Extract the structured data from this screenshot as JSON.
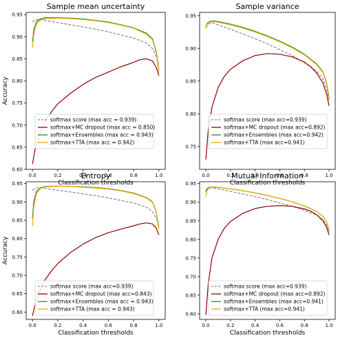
{
  "chart_data": [
    {
      "type": "line",
      "title": "Sample mean uncertainty",
      "xlabel": "Classification thresholds",
      "ylabel": "Accuracy",
      "xlim": [
        -0.05,
        1.05
      ],
      "ylim": [
        0.6,
        0.955
      ],
      "xticks": [
        "0.0",
        "0.2",
        "0.4",
        "0.6",
        "0.8",
        "1.0"
      ],
      "yticks": [
        "0.60",
        "0.65",
        "0.70",
        "0.75",
        "0.80",
        "0.85",
        "0.90",
        "0.95"
      ],
      "grid": false,
      "legend_position": "lower-left",
      "series": [
        {
          "name": "softmax score (max acc = 0.939)",
          "color": "#888888",
          "dash": "dashed",
          "x": [
            0.0,
            0.02,
            0.05,
            0.1,
            0.2,
            0.3,
            0.4,
            0.5,
            0.6,
            0.7,
            0.8,
            0.9,
            0.95,
            0.98,
            1.0
          ],
          "y": [
            0.933,
            0.938,
            0.939,
            0.937,
            0.932,
            0.927,
            0.922,
            0.917,
            0.911,
            0.904,
            0.897,
            0.886,
            0.873,
            0.855,
            0.835
          ]
        },
        {
          "name": "softmax+MC dropout (max acc = 0.850)",
          "color": "#8b0000",
          "dash": "solid",
          "x": [
            0.0,
            0.02,
            0.05,
            0.1,
            0.15,
            0.2,
            0.3,
            0.4,
            0.5,
            0.6,
            0.7,
            0.8,
            0.85,
            0.9,
            0.95,
            0.98,
            1.0
          ],
          "y": [
            0.612,
            0.645,
            0.675,
            0.708,
            0.73,
            0.748,
            0.772,
            0.792,
            0.808,
            0.82,
            0.832,
            0.842,
            0.848,
            0.85,
            0.845,
            0.83,
            0.812
          ]
        },
        {
          "name": "softmax+Ensembles (max acc = 0.943)",
          "color": "#228b22",
          "dash": "solid",
          "x": [
            0.0,
            0.01,
            0.03,
            0.06,
            0.1,
            0.2,
            0.3,
            0.4,
            0.5,
            0.6,
            0.7,
            0.8,
            0.9,
            0.95,
            0.98,
            1.0
          ],
          "y": [
            0.888,
            0.915,
            0.933,
            0.94,
            0.943,
            0.943,
            0.942,
            0.94,
            0.937,
            0.933,
            0.927,
            0.92,
            0.908,
            0.895,
            0.865,
            0.825
          ]
        },
        {
          "name": "softmax+TTA (max acc = 0.942)",
          "color": "#f0a800",
          "dash": "solid",
          "x": [
            0.0,
            0.01,
            0.03,
            0.06,
            0.1,
            0.2,
            0.3,
            0.4,
            0.5,
            0.6,
            0.7,
            0.8,
            0.9,
            0.95,
            0.98,
            1.0
          ],
          "y": [
            0.875,
            0.905,
            0.928,
            0.937,
            0.941,
            0.942,
            0.941,
            0.939,
            0.936,
            0.932,
            0.926,
            0.919,
            0.906,
            0.893,
            0.862,
            0.82
          ]
        }
      ]
    },
    {
      "type": "line",
      "title": "Sample variance",
      "xlabel": "Classification thresholds",
      "ylabel": "",
      "xlim": [
        -0.05,
        1.05
      ],
      "ylim": [
        0.715,
        0.955
      ],
      "xticks": [
        "0.0",
        "0.2",
        "0.4",
        "0.6",
        "0.8",
        "1.0"
      ],
      "yticks": [
        "0.75",
        "0.80",
        "0.85",
        "0.90",
        "0.95"
      ],
      "grid": false,
      "legend_position": "lower-center",
      "series": [
        {
          "name": "softmax score (max acc=0.939)",
          "color": "#888888",
          "dash": "dashed",
          "x": [
            0.0,
            0.02,
            0.05,
            0.1,
            0.2,
            0.3,
            0.4,
            0.5,
            0.6,
            0.7,
            0.8,
            0.9,
            0.95,
            0.98,
            1.0
          ],
          "y": [
            0.932,
            0.937,
            0.939,
            0.936,
            0.929,
            0.922,
            0.915,
            0.907,
            0.898,
            0.889,
            0.878,
            0.865,
            0.853,
            0.838,
            0.82
          ]
        },
        {
          "name": "softmax+MC dropout (max acc=0.892)",
          "color": "#8b0000",
          "dash": "solid",
          "x": [
            0.0,
            0.02,
            0.05,
            0.1,
            0.15,
            0.2,
            0.3,
            0.4,
            0.5,
            0.6,
            0.7,
            0.8,
            0.85,
            0.9,
            0.95,
            0.98,
            1.0
          ],
          "y": [
            0.73,
            0.775,
            0.81,
            0.84,
            0.857,
            0.868,
            0.881,
            0.889,
            0.892,
            0.891,
            0.887,
            0.879,
            0.872,
            0.862,
            0.847,
            0.83,
            0.812
          ]
        },
        {
          "name": "softmax+Ensembles (max acc=0.942)",
          "color": "#228b22",
          "dash": "solid",
          "x": [
            0.0,
            0.01,
            0.03,
            0.06,
            0.1,
            0.2,
            0.3,
            0.4,
            0.5,
            0.6,
            0.7,
            0.8,
            0.9,
            0.95,
            0.98,
            1.0
          ],
          "y": [
            0.932,
            0.938,
            0.941,
            0.942,
            0.941,
            0.937,
            0.932,
            0.926,
            0.919,
            0.911,
            0.902,
            0.891,
            0.876,
            0.864,
            0.847,
            0.825
          ]
        },
        {
          "name": "softmax+TTA (max acc=0.941)",
          "color": "#f0a800",
          "dash": "solid",
          "x": [
            0.0,
            0.01,
            0.03,
            0.06,
            0.1,
            0.2,
            0.3,
            0.4,
            0.5,
            0.6,
            0.7,
            0.8,
            0.9,
            0.95,
            0.98,
            1.0
          ],
          "y": [
            0.93,
            0.937,
            0.94,
            0.941,
            0.94,
            0.936,
            0.931,
            0.925,
            0.918,
            0.91,
            0.901,
            0.89,
            0.875,
            0.863,
            0.846,
            0.822
          ]
        }
      ]
    },
    {
      "type": "line",
      "title": "Entropy",
      "xlabel": "Classification thresholds",
      "ylabel": "Accuracy",
      "xlim": [
        -0.05,
        1.05
      ],
      "ylim": [
        0.58,
        0.955
      ],
      "xticks": [
        "0.0",
        "0.2",
        "0.4",
        "0.6",
        "0.8",
        "1.0"
      ],
      "yticks": [
        "0.60",
        "0.65",
        "0.70",
        "0.75",
        "0.80",
        "0.85",
        "0.90",
        "0.95"
      ],
      "grid": false,
      "legend_position": "lower-left",
      "series": [
        {
          "name": "softmax score (max acc=0.939)",
          "color": "#888888",
          "dash": "dashed",
          "x": [
            0.0,
            0.02,
            0.05,
            0.1,
            0.2,
            0.3,
            0.4,
            0.5,
            0.6,
            0.7,
            0.8,
            0.9,
            0.95,
            0.98,
            1.0
          ],
          "y": [
            0.932,
            0.937,
            0.939,
            0.937,
            0.932,
            0.927,
            0.922,
            0.917,
            0.911,
            0.904,
            0.897,
            0.886,
            0.873,
            0.855,
            0.835
          ]
        },
        {
          "name": "softmax+MC dropout (max acc=0.843)",
          "color": "#8b0000",
          "dash": "solid",
          "x": [
            0.0,
            0.02,
            0.05,
            0.1,
            0.15,
            0.2,
            0.3,
            0.4,
            0.5,
            0.6,
            0.7,
            0.8,
            0.85,
            0.9,
            0.95,
            0.98,
            1.0
          ],
          "y": [
            0.59,
            0.62,
            0.652,
            0.688,
            0.712,
            0.732,
            0.762,
            0.785,
            0.803,
            0.816,
            0.826,
            0.835,
            0.84,
            0.843,
            0.84,
            0.828,
            0.81
          ]
        },
        {
          "name": "softmax+Ensembles (max acc = 0.943)",
          "color": "#228b22",
          "dash": "solid",
          "x": [
            0.0,
            0.01,
            0.03,
            0.06,
            0.1,
            0.2,
            0.3,
            0.4,
            0.5,
            0.6,
            0.7,
            0.8,
            0.9,
            0.95,
            0.98,
            1.0
          ],
          "y": [
            0.855,
            0.9,
            0.928,
            0.938,
            0.942,
            0.943,
            0.942,
            0.941,
            0.939,
            0.936,
            0.931,
            0.924,
            0.912,
            0.9,
            0.872,
            0.83
          ]
        },
        {
          "name": "softmax+TTA (max acc = 0.943)",
          "color": "#f0a800",
          "dash": "solid",
          "x": [
            0.0,
            0.01,
            0.03,
            0.06,
            0.1,
            0.2,
            0.3,
            0.4,
            0.5,
            0.6,
            0.7,
            0.8,
            0.9,
            0.95,
            0.98,
            1.0
          ],
          "y": [
            0.835,
            0.885,
            0.922,
            0.936,
            0.941,
            0.943,
            0.942,
            0.94,
            0.938,
            0.935,
            0.93,
            0.923,
            0.911,
            0.899,
            0.87,
            0.825
          ]
        }
      ]
    },
    {
      "type": "line",
      "title": "Mutual Information",
      "xlabel": "Classification thresholds",
      "ylabel": "",
      "xlim": [
        -0.05,
        1.05
      ],
      "ylim": [
        0.585,
        0.955
      ],
      "xticks": [
        "0.0",
        "0.2",
        "0.4",
        "0.6",
        "0.8",
        "1.0"
      ],
      "yticks": [
        "0.60",
        "0.65",
        "0.70",
        "0.75",
        "0.80",
        "0.85",
        "0.90",
        "0.95"
      ],
      "grid": false,
      "legend_position": "lower-center",
      "series": [
        {
          "name": "softmax score (max acc=0.939)",
          "color": "#888888",
          "dash": "dashed",
          "x": [
            0.0,
            0.02,
            0.05,
            0.1,
            0.2,
            0.3,
            0.4,
            0.5,
            0.6,
            0.7,
            0.8,
            0.9,
            0.95,
            0.98,
            1.0
          ],
          "y": [
            0.932,
            0.937,
            0.939,
            0.936,
            0.929,
            0.922,
            0.915,
            0.907,
            0.898,
            0.889,
            0.878,
            0.865,
            0.853,
            0.838,
            0.82
          ]
        },
        {
          "name": "softmax+MC dropout (max acc=0.892)",
          "color": "#8b0000",
          "dash": "solid",
          "x": [
            0.0,
            0.02,
            0.05,
            0.1,
            0.15,
            0.2,
            0.3,
            0.4,
            0.5,
            0.6,
            0.7,
            0.8,
            0.85,
            0.9,
            0.95,
            0.98,
            1.0
          ],
          "y": [
            0.597,
            0.68,
            0.75,
            0.8,
            0.83,
            0.848,
            0.87,
            0.883,
            0.889,
            0.891,
            0.889,
            0.882,
            0.876,
            0.866,
            0.85,
            0.832,
            0.812
          ]
        },
        {
          "name": "softmax+Ensembles (max acc=0.941)",
          "color": "#228b22",
          "dash": "solid",
          "x": [
            0.0,
            0.01,
            0.03,
            0.06,
            0.1,
            0.2,
            0.3,
            0.4,
            0.5,
            0.6,
            0.7,
            0.8,
            0.9,
            0.95,
            0.98,
            1.0
          ],
          "y": [
            0.928,
            0.936,
            0.94,
            0.941,
            0.94,
            0.936,
            0.931,
            0.925,
            0.918,
            0.91,
            0.901,
            0.89,
            0.875,
            0.862,
            0.846,
            0.824
          ]
        },
        {
          "name": "softmax+TTA (max acc=0.941)",
          "color": "#f0a800",
          "dash": "solid",
          "x": [
            0.0,
            0.01,
            0.03,
            0.06,
            0.1,
            0.2,
            0.3,
            0.4,
            0.5,
            0.6,
            0.7,
            0.8,
            0.9,
            0.95,
            0.98,
            1.0
          ],
          "y": [
            0.915,
            0.932,
            0.939,
            0.941,
            0.94,
            0.936,
            0.931,
            0.925,
            0.918,
            0.91,
            0.901,
            0.89,
            0.875,
            0.862,
            0.846,
            0.822
          ]
        }
      ]
    }
  ]
}
